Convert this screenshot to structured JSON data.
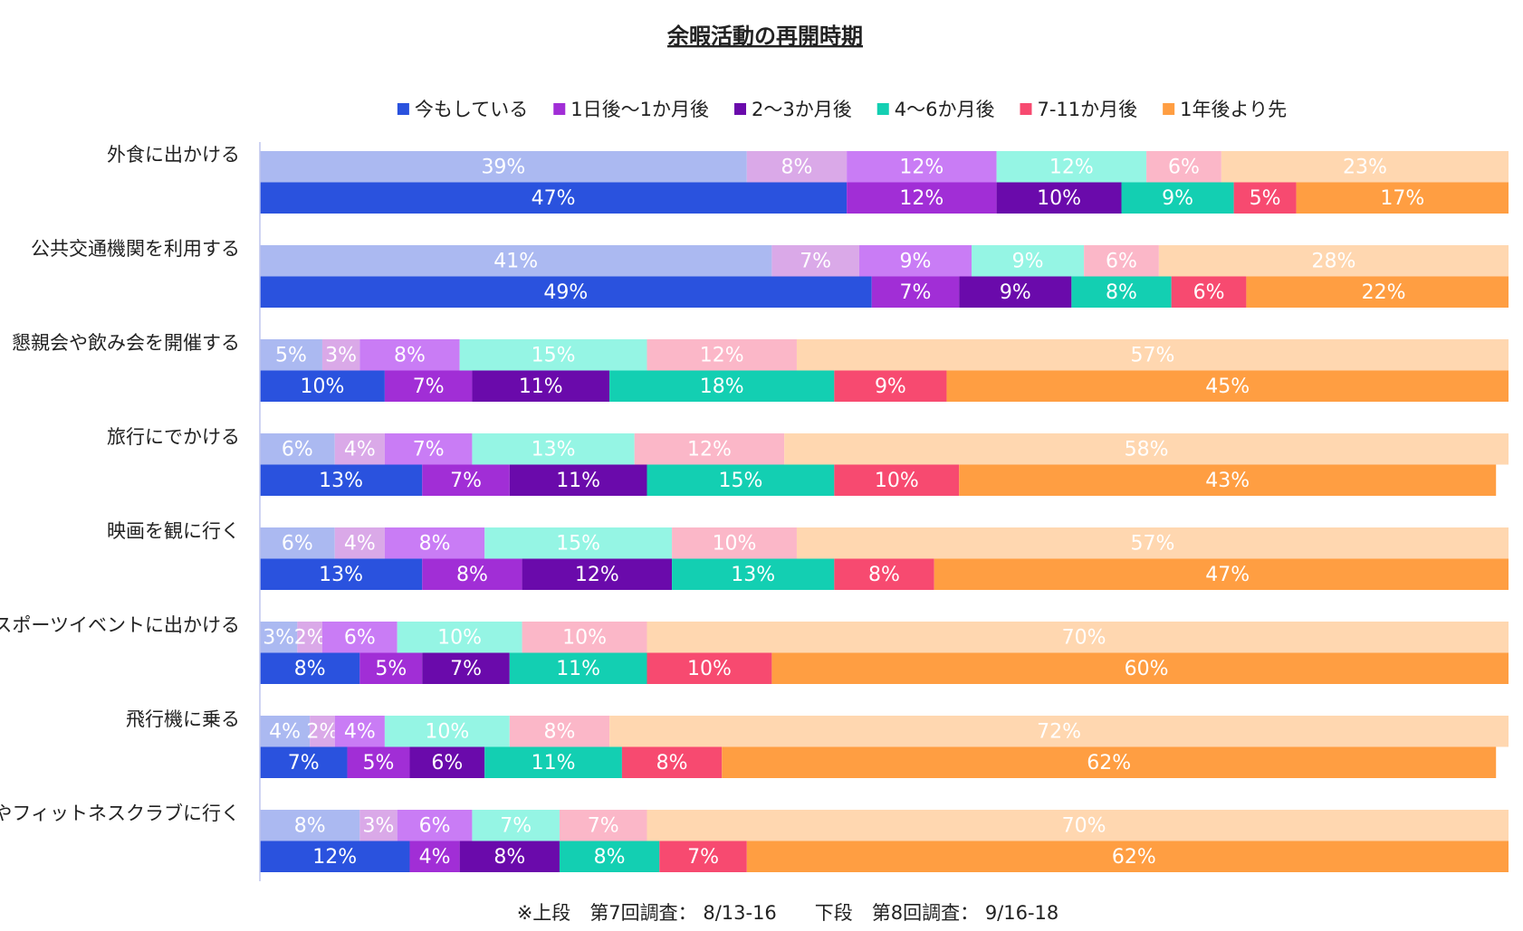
{
  "chart_data": {
    "type": "stacked_bar_100",
    "title": "余暇活動の再開時期",
    "footnote": "※上段　第7回調査： 8/13-16　　下段　第8回調査： 9/16-18",
    "categories": [
      "外食に出かける",
      "公共交通機関を利用する",
      "懇親会や飲み会を開催する",
      "旅行にでかける",
      "映画を観に行く",
      "スポーツイベントに出かける",
      "飛行機に乗る",
      "ジムやフィットネスクラブに行く"
    ],
    "xlim": [
      0,
      100
    ],
    "series": [
      {
        "name": "今もしている",
        "color": "#2a52de",
        "upper_color": "#abb9f1",
        "upper_values": [
          39,
          41,
          5,
          6,
          6,
          3,
          4,
          8
        ],
        "upper_value_labels": [
          "39%",
          "41%",
          "5%",
          "6%",
          "6%",
          "3%",
          "4%",
          "8%"
        ],
        "values": [
          47,
          49,
          10,
          13,
          13,
          8,
          7,
          12
        ],
        "value_labels": [
          "47%",
          "49%",
          "10%",
          "13%",
          "13%",
          "8%",
          "7%",
          "12%"
        ]
      },
      {
        "name": "1日後～1か月後",
        "color": "#a12ed6",
        "upper_color": "#daa9e8",
        "upper_values": [
          8,
          7,
          3,
          4,
          4,
          2,
          2,
          3
        ],
        "upper_value_labels": [
          "8%",
          "7%",
          "3%",
          "4%",
          "4%",
          "2%",
          "2%",
          "3%"
        ],
        "values": [
          12,
          7,
          7,
          7,
          8,
          5,
          5,
          4
        ],
        "value_labels": [
          "12%",
          "7%",
          "7%",
          "7%",
          "8%",
          "5%",
          "5%",
          "4%"
        ]
      },
      {
        "name": "2～3か月後",
        "color": "#6a0aab",
        "upper_color": "#c97cf5",
        "upper_values": [
          12,
          9,
          8,
          7,
          8,
          6,
          4,
          6
        ],
        "upper_value_labels": [
          "12%",
          "9%",
          "8%",
          "7%",
          "8%",
          "6%",
          "4%",
          "6%"
        ],
        "values": [
          10,
          9,
          11,
          11,
          12,
          7,
          6,
          8
        ],
        "value_labels": [
          "10%",
          "9%",
          "11%",
          "11%",
          "12%",
          "7%",
          "6%",
          "8%"
        ]
      },
      {
        "name": "4～6か月後",
        "color": "#13cfb2",
        "upper_color": "#95f5e4",
        "upper_values": [
          12,
          9,
          15,
          13,
          15,
          10,
          10,
          7
        ],
        "upper_value_labels": [
          "12%",
          "9%",
          "15%",
          "13%",
          "15%",
          "10%",
          "10%",
          "7%"
        ],
        "values": [
          9,
          8,
          18,
          15,
          13,
          11,
          11,
          8
        ],
        "value_labels": [
          "9%",
          "8%",
          "18%",
          "15%",
          "13%",
          "11%",
          "11%",
          "8%"
        ]
      },
      {
        "name": "7-11か月後",
        "color": "#f74a70",
        "upper_color": "#fbb7c8",
        "upper_values": [
          6,
          6,
          12,
          12,
          10,
          10,
          8,
          7
        ],
        "upper_value_labels": [
          "6%",
          "6%",
          "12%",
          "12%",
          "10%",
          "10%",
          "8%",
          "7%"
        ],
        "values": [
          5,
          6,
          9,
          10,
          8,
          10,
          8,
          7
        ],
        "value_labels": [
          "5%",
          "6%",
          "9%",
          "10%",
          "8%",
          "10%",
          "8%",
          "7%"
        ]
      },
      {
        "name": "1年後より先",
        "color": "#ff9e42",
        "upper_color": "#ffd7b0",
        "upper_values": [
          23,
          28,
          57,
          58,
          57,
          70,
          72,
          70
        ],
        "upper_value_labels": [
          "23%",
          "28%",
          "57%",
          "58%",
          "57%",
          "70%",
          "72%",
          "70%"
        ],
        "values": [
          17,
          22,
          45,
          43,
          47,
          60,
          62,
          62
        ],
        "value_labels": [
          "17%",
          "22%",
          "45%",
          "43%",
          "47%",
          "60%",
          "62%",
          "62%"
        ]
      }
    ]
  }
}
